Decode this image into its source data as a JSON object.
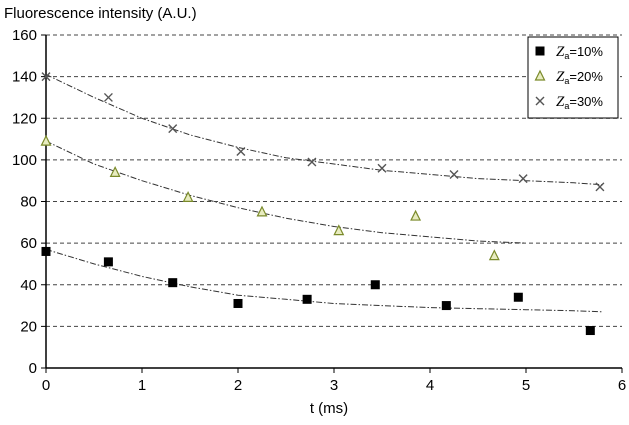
{
  "chart_data": {
    "type": "scatter",
    "title": "",
    "ylabel": "Fluorescence intensity (A.U.)",
    "xlabel": "t (ms)",
    "xlim": [
      0,
      6
    ],
    "ylim": [
      0,
      160
    ],
    "xticks": [
      "0",
      "1",
      "2",
      "3",
      "4",
      "5",
      "6"
    ],
    "yticks": [
      "0",
      "20",
      "40",
      "60",
      "80",
      "100",
      "120",
      "140",
      "160"
    ],
    "grid": "horizontal dashed",
    "legend_position": "top-right",
    "series": [
      {
        "name": "Za = 10%",
        "legend_symbol": "Z",
        "legend_subscript": "a",
        "legend_value": "=10%",
        "marker": "square",
        "color": "#000000",
        "x": [
          0.0,
          0.65,
          1.32,
          2.0,
          2.72,
          3.43,
          4.17,
          4.92,
          5.67
        ],
        "y": [
          56,
          51,
          41,
          31,
          33,
          40,
          30,
          34,
          18
        ],
        "fit": {
          "x": [
            0,
            0.5,
            1,
            1.5,
            2,
            2.5,
            3,
            3.5,
            4,
            4.5,
            5,
            5.5,
            5.8
          ],
          "y": [
            57,
            50,
            44,
            39,
            35,
            33,
            31,
            30,
            29,
            28.5,
            28,
            27.5,
            27
          ]
        }
      },
      {
        "name": "Za = 20%",
        "legend_symbol": "Z",
        "legend_subscript": "a",
        "legend_value": "=20%",
        "marker": "triangle",
        "color": "#7a8a2a",
        "x": [
          0.0,
          0.72,
          1.48,
          2.25,
          3.05,
          3.85,
          4.67
        ],
        "y": [
          109,
          94,
          82,
          75,
          66,
          73,
          54
        ],
        "fit": {
          "x": [
            0,
            0.5,
            1,
            1.5,
            2,
            2.5,
            3,
            3.5,
            4,
            4.5,
            5
          ],
          "y": [
            109,
            98,
            90,
            83,
            77,
            72,
            68,
            65,
            63,
            61,
            60
          ]
        }
      },
      {
        "name": "Za = 30%",
        "legend_symbol": "Z",
        "legend_subscript": "a",
        "legend_value": "=30%",
        "marker": "x",
        "color": "#555555",
        "x": [
          0.0,
          0.65,
          1.32,
          2.03,
          2.77,
          3.5,
          4.25,
          4.97,
          5.77
        ],
        "y": [
          140,
          130,
          115,
          104,
          99,
          96,
          93,
          91,
          87
        ],
        "fit": {
          "x": [
            0,
            0.5,
            1,
            1.5,
            2,
            2.5,
            3,
            3.5,
            4,
            4.5,
            5,
            5.5,
            5.8
          ],
          "y": [
            141,
            130,
            120,
            112,
            106,
            101,
            98,
            95,
            93,
            91,
            90,
            89,
            88
          ]
        }
      }
    ]
  }
}
